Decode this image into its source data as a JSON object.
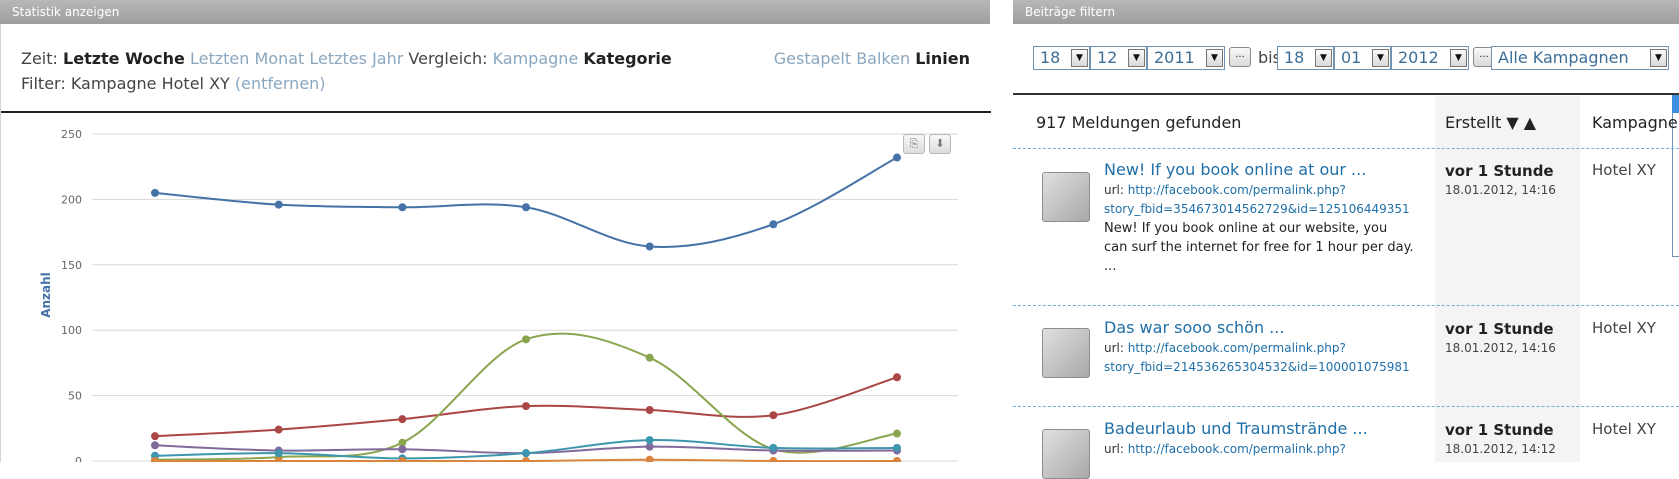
{
  "left_panel": {
    "title": "Statistik anzeigen",
    "zeit_label": "Zeit:",
    "zeit_options": [
      "Letzte Woche",
      "Letzten Monat",
      "Letztes Jahr"
    ],
    "vergleich_label": "Vergleich:",
    "vergleich_options": [
      "Kampagne",
      "Kategorie"
    ],
    "filter_label": "Filter: Kampagne Hotel XY",
    "filter_remove": "(entfernen)",
    "view_modes": [
      "Gestapelt",
      "Balken",
      "Linien"
    ],
    "print_icon": "printer-icon",
    "download_icon": "download-icon"
  },
  "chart_data": {
    "type": "line",
    "ylabel": "Anzahl",
    "ylim": [
      0,
      250
    ],
    "yticks": [
      0,
      50,
      100,
      150,
      200,
      250
    ],
    "grid": true,
    "x": [
      1,
      2,
      3,
      4,
      5,
      6,
      7
    ],
    "series": [
      {
        "color": "#4572a7",
        "values": [
          205,
          196,
          194,
          194,
          164,
          181,
          232
        ]
      },
      {
        "color": "#aa4643",
        "values": [
          19,
          24,
          32,
          42,
          39,
          35,
          64
        ]
      },
      {
        "color": "#89a54e",
        "values": [
          1,
          3,
          14,
          93,
          79,
          9,
          21
        ]
      },
      {
        "color": "#80699b",
        "values": [
          12,
          8,
          9,
          6,
          11,
          8,
          8
        ]
      },
      {
        "color": "#3d96ae",
        "values": [
          4,
          6,
          2,
          6,
          16,
          10,
          10
        ]
      },
      {
        "color": "#db843d",
        "values": [
          0,
          0,
          0,
          0,
          1,
          0,
          0
        ]
      }
    ]
  },
  "right_panel": {
    "title": "Beiträge filtern",
    "from_day": "18",
    "from_month": "12",
    "from_year": "2011",
    "bis": "bis",
    "to_day": "18",
    "to_month": "01",
    "to_year": "2012",
    "dots": "...",
    "campaign_select": "Alle Kampagnen",
    "found": "917 Meldungen gefunden",
    "col_created": "Erstellt ▼ ▲",
    "col_campaign": "Kampagne",
    "posts": [
      {
        "title": "New! If you book online at our ...",
        "url_label": "url:",
        "url_line1": "http://facebook.com/permalink.php?",
        "url_line2": "story_fbid=354673014562729&id=125106449351",
        "text": "New! If you book online at our website, you can surf the internet for free for 1 hour per day. ...",
        "time": "vor 1 Stunde",
        "date": "18.01.2012, 14:16",
        "campaign": "Hotel XY"
      },
      {
        "title": "Das war sooo schön ...",
        "url_label": "url:",
        "url_line1": "http://facebook.com/permalink.php?",
        "url_line2": "story_fbid=214536265304532&id=100001075981",
        "text": "",
        "time": "vor 1 Stunde",
        "date": "18.01.2012, 14:16",
        "campaign": "Hotel XY"
      },
      {
        "title": "Badeurlaub und Traumstrände ...",
        "url_label": "url:",
        "url_line1": "http://facebook.com/permalink.php?",
        "url_line2": "",
        "text": "",
        "time": "vor 1 Stunde",
        "date": "18.01.2012, 14:12",
        "campaign": "Hotel XY"
      }
    ]
  }
}
